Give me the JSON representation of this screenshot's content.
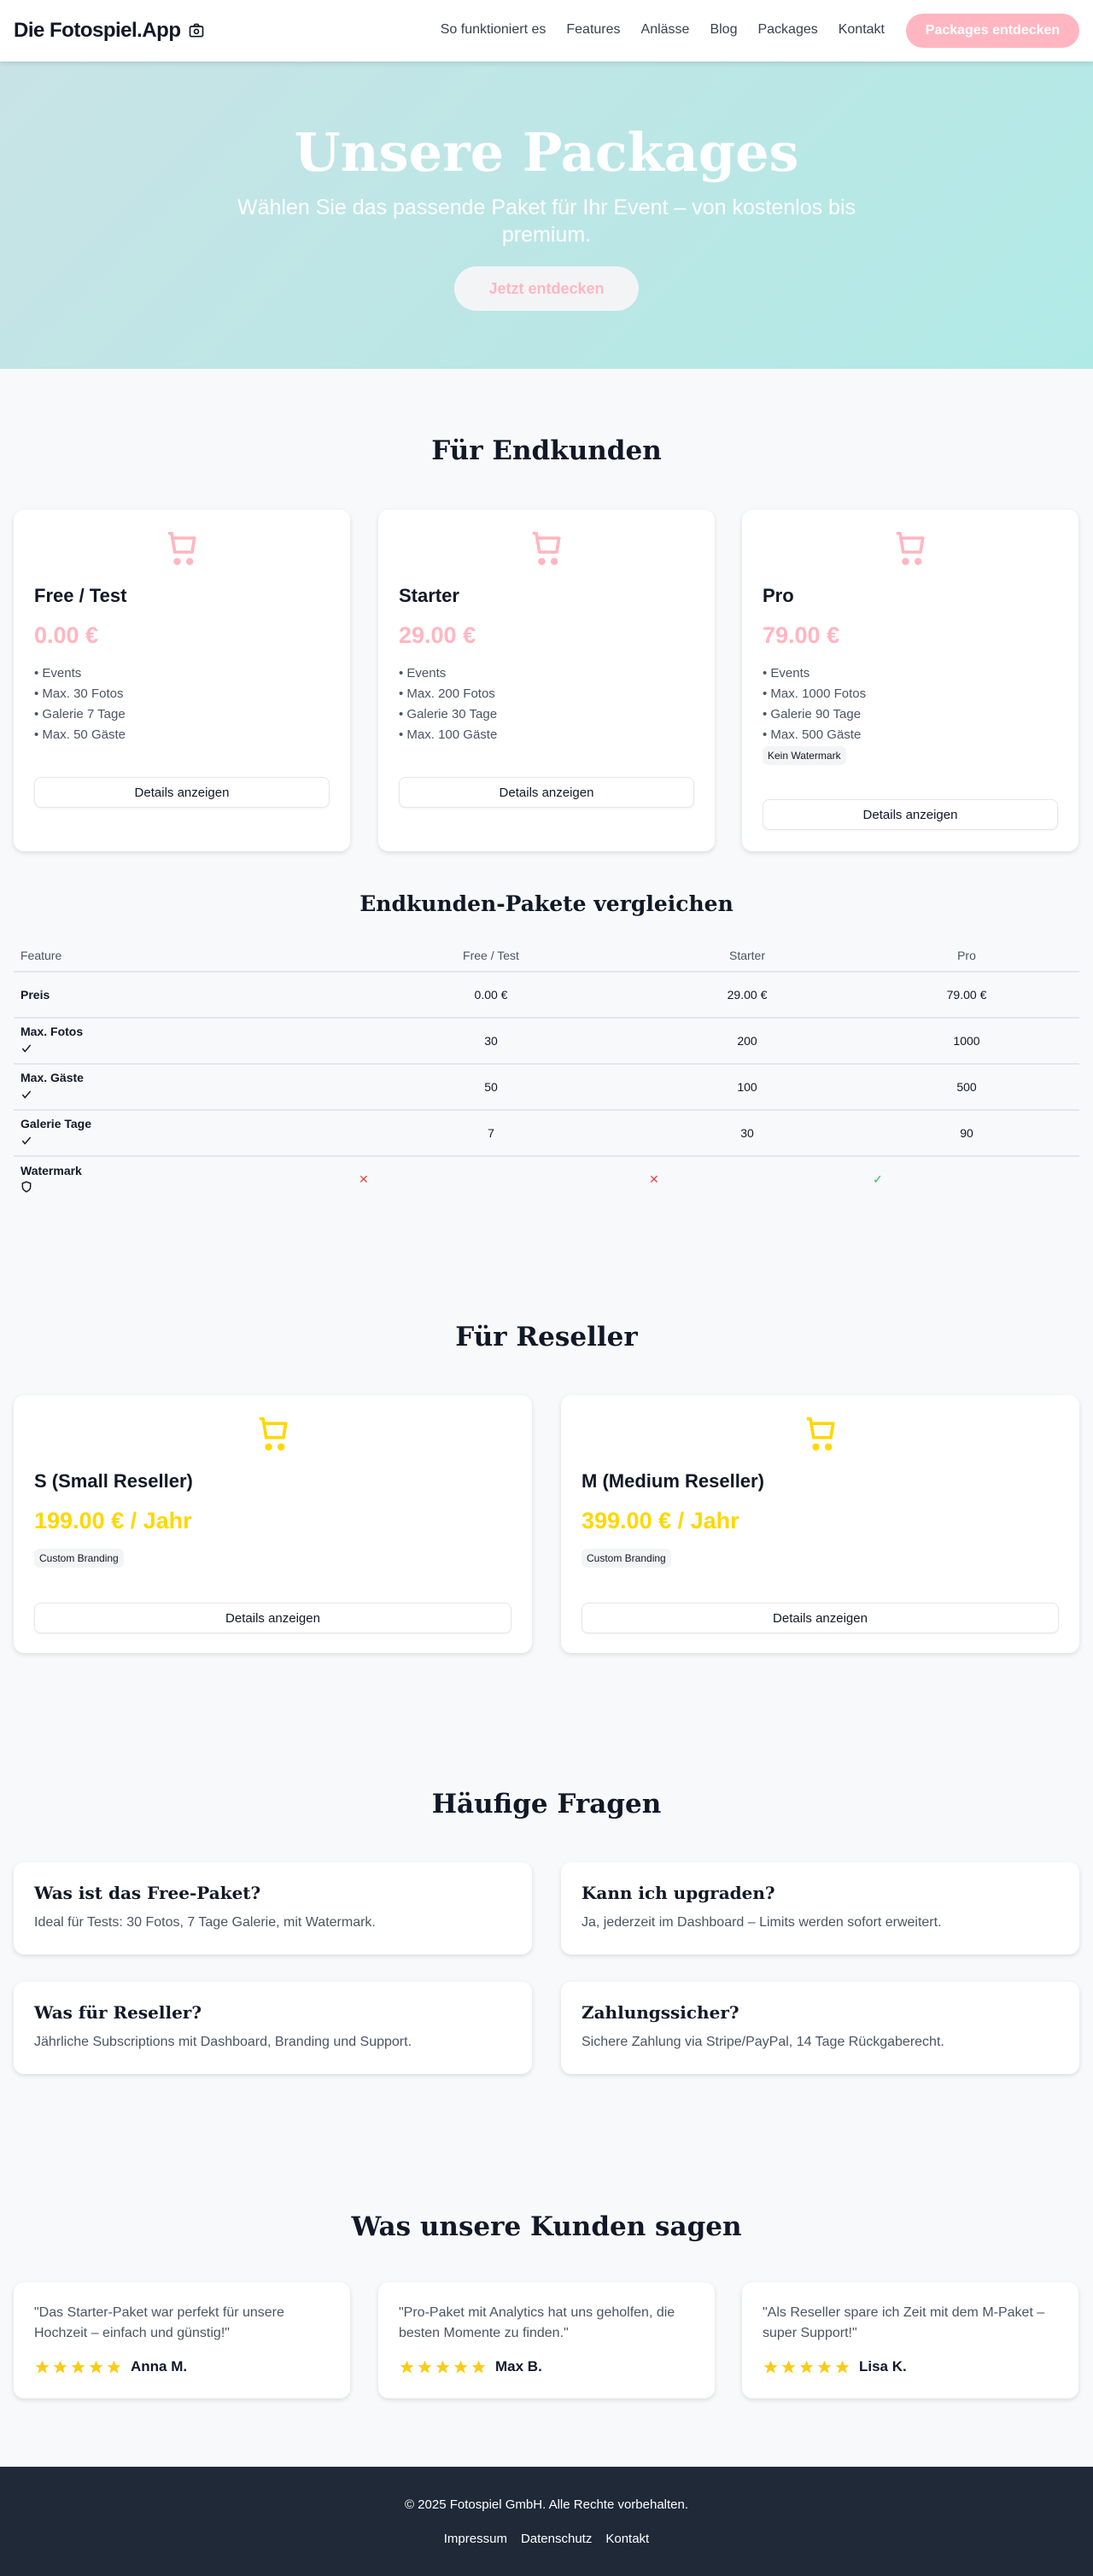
{
  "header": {
    "logo": "Die Fotospiel.App",
    "nav": [
      "So funktioniert es",
      "Features",
      "Anlässe",
      "Blog",
      "Packages",
      "Kontakt"
    ],
    "cta": "Packages entdecken"
  },
  "hero": {
    "title": "Unsere Packages",
    "subtitle": "Wählen Sie das passende Paket für Ihr Event – von kostenlos bis premium.",
    "button": "Jetzt entdecken"
  },
  "colors": {
    "pink": "#ffb6c1",
    "yellow": "#ffd700",
    "footer": "#1f2937"
  },
  "endkunden": {
    "heading": "Für Endkunden",
    "packages": [
      {
        "name": "Free / Test",
        "price": "0.00 €",
        "features": [
          "Events",
          "Max. 30 Fotos",
          "Galerie 7 Tage",
          "Max. 50 Gäste"
        ],
        "button": "Details anzeigen"
      },
      {
        "name": "Starter",
        "price": "29.00 €",
        "features": [
          "Events",
          "Max. 200 Fotos",
          "Galerie 30 Tage",
          "Max. 100 Gäste"
        ],
        "button": "Details anzeigen"
      },
      {
        "name": "Pro",
        "price": "79.00 €",
        "features": [
          "Events",
          "Max. 1000 Fotos",
          "Galerie 90 Tage",
          "Max. 500 Gäste"
        ],
        "badge": "Kein Watermark",
        "button": "Details anzeigen"
      }
    ]
  },
  "compare": {
    "heading": "Endkunden-Pakete vergleichen",
    "columns": [
      "Feature",
      "Free / Test",
      "Starter",
      "Pro"
    ],
    "rows": [
      {
        "label": "Preis",
        "values": [
          "0.00 €",
          "29.00 €",
          "79.00 €"
        ]
      },
      {
        "label": "Max. Fotos",
        "icon": "check-icon",
        "values": [
          "30",
          "200",
          "1000"
        ]
      },
      {
        "label": "Max. Gäste",
        "icon": "check-icon",
        "values": [
          "50",
          "100",
          "500"
        ]
      },
      {
        "label": "Galerie Tage",
        "icon": "check-icon",
        "values": [
          "7",
          "30",
          "90"
        ]
      },
      {
        "label": "Watermark",
        "icon": "shield-icon",
        "values": [
          "✕",
          "✕",
          "✓"
        ]
      }
    ]
  },
  "reseller": {
    "heading": "Für Reseller",
    "packages": [
      {
        "name": "S (Small Reseller)",
        "price": "199.00 € / Jahr",
        "badge": "Custom Branding",
        "button": "Details anzeigen"
      },
      {
        "name": "M (Medium Reseller)",
        "price": "399.00 € / Jahr",
        "badge": "Custom Branding",
        "button": "Details anzeigen"
      }
    ]
  },
  "faq": {
    "heading": "Häufige Fragen",
    "items": [
      {
        "q": "Was ist das Free-Paket?",
        "a": "Ideal für Tests: 30 Fotos, 7 Tage Galerie, mit Watermark."
      },
      {
        "q": "Kann ich upgraden?",
        "a": "Ja, jederzeit im Dashboard – Limits werden sofort erweitert."
      },
      {
        "q": "Was für Reseller?",
        "a": "Jährliche Subscriptions mit Dashboard, Branding und Support."
      },
      {
        "q": "Zahlungssicher?",
        "a": "Sichere Zahlung via Stripe/PayPal, 14 Tage Rückgaberecht."
      }
    ]
  },
  "testimonials": {
    "heading": "Was unsere Kunden sagen",
    "items": [
      {
        "quote": "\"Das Starter-Paket war perfekt für unsere Hochzeit – einfach und günstig!\"",
        "name": "Anna M.",
        "rating": 5
      },
      {
        "quote": "\"Pro-Paket mit Analytics hat uns geholfen, die besten Momente zu finden.\"",
        "name": "Max B.",
        "rating": 5
      },
      {
        "quote": "\"Als Reseller spare ich Zeit mit dem M-Paket – super Support!\"",
        "name": "Lisa K.",
        "rating": 5
      }
    ]
  },
  "footer": {
    "copyright": "© 2025 Fotospiel GmbH. Alle Rechte vorbehalten.",
    "links": [
      "Impressum",
      "Datenschutz",
      "Kontakt"
    ]
  }
}
